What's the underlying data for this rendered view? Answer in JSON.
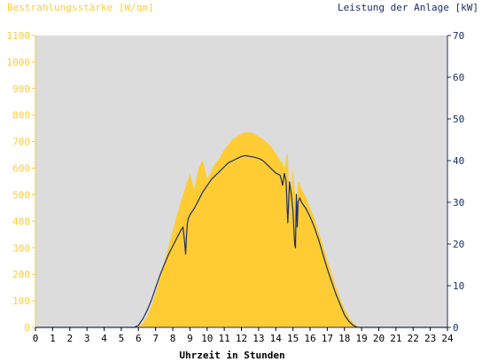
{
  "chart_data": {
    "type": "area",
    "title_left": "Bestrahlungsstärke [W/qm]",
    "title_right": "Leistung der Anlage [kW]",
    "xlabel": "Uhrzeit in Stunden",
    "x_ticks": [
      "0",
      "1",
      "2",
      "3",
      "4",
      "5",
      "6",
      "7",
      "8",
      "9",
      "10",
      "11",
      "12",
      "13",
      "14",
      "15",
      "16",
      "17",
      "18",
      "19",
      "20",
      "21",
      "22",
      "23",
      "24"
    ],
    "xlim": [
      0,
      24
    ],
    "y_left_ticks": [
      "0",
      "100",
      "200",
      "300",
      "400",
      "500",
      "600",
      "700",
      "800",
      "900",
      "1000",
      "1100"
    ],
    "y_left_lim": [
      0,
      1100
    ],
    "y_right_ticks": [
      "0",
      "10",
      "20",
      "30",
      "40",
      "50",
      "60",
      "70"
    ],
    "y_right_lim": [
      0,
      70
    ],
    "colors": {
      "irradiance": "#ffcc33",
      "power": "#1a2f66",
      "plot_bg": "#dcdcdc",
      "left_axis_text": "#ffcc33",
      "right_axis_text": "#1a2f66"
    },
    "series": [
      {
        "name": "Bestrahlungsstärke [W/qm]",
        "axis": "left",
        "x": [
          0,
          5.8,
          6,
          6.25,
          6.5,
          6.75,
          7,
          7.25,
          7.5,
          7.75,
          8,
          8.25,
          8.5,
          8.75,
          9,
          9.25,
          9.5,
          9.75,
          10,
          10.25,
          10.5,
          10.75,
          11,
          11.25,
          11.5,
          11.75,
          12,
          12.25,
          12.5,
          12.75,
          13,
          13.25,
          13.5,
          13.75,
          14,
          14.25,
          14.4,
          14.5,
          14.6,
          14.7,
          14.75,
          14.85,
          14.9,
          15,
          15.1,
          15.2,
          15.3,
          15.4,
          15.5,
          15.75,
          16,
          16.25,
          16.5,
          16.75,
          17,
          17.25,
          17.5,
          17.75,
          18,
          18.25,
          18.5,
          18.75,
          19,
          19.25,
          19.5,
          24
        ],
        "values": [
          0,
          0,
          5,
          15,
          40,
          80,
          130,
          185,
          245,
          305,
          365,
          425,
          480,
          530,
          580,
          520,
          600,
          630,
          560,
          590,
          620,
          640,
          670,
          690,
          710,
          720,
          730,
          735,
          735,
          730,
          720,
          710,
          695,
          680,
          655,
          630,
          620,
          600,
          640,
          660,
          560,
          540,
          520,
          600,
          520,
          450,
          550,
          540,
          520,
          490,
          450,
          410,
          360,
          310,
          255,
          205,
          155,
          110,
          70,
          40,
          18,
          6,
          2,
          0,
          0,
          0
        ]
      },
      {
        "name": "Leistung der Anlage [kW]",
        "axis": "right",
        "x": [
          0,
          5.75,
          6,
          6.25,
          6.5,
          6.75,
          7,
          7.25,
          7.5,
          7.75,
          8,
          8.25,
          8.5,
          8.6,
          8.7,
          8.75,
          8.8,
          8.85,
          8.9,
          9,
          9.25,
          9.5,
          9.75,
          10,
          10.25,
          10.5,
          10.75,
          11,
          11.25,
          11.5,
          11.75,
          12,
          12.25,
          12.5,
          12.75,
          13,
          13.25,
          13.5,
          13.75,
          14,
          14.25,
          14.35,
          14.4,
          14.5,
          14.6,
          14.7,
          14.75,
          14.8,
          14.9,
          15,
          15.1,
          15.15,
          15.2,
          15.25,
          15.3,
          15.4,
          15.5,
          15.75,
          16,
          16.25,
          16.5,
          16.75,
          17,
          17.25,
          17.5,
          17.75,
          18,
          18.25,
          18.5,
          18.75,
          19,
          19.25,
          24
        ],
        "values": [
          0,
          0,
          0.5,
          2,
          4,
          6.5,
          9.5,
          12.5,
          15,
          17.5,
          19.5,
          21.5,
          23.5,
          24,
          20,
          17.5,
          22,
          25,
          26,
          27,
          28.5,
          30.5,
          32.5,
          34,
          35.5,
          36.5,
          37.5,
          38.5,
          39.5,
          40,
          40.5,
          41,
          41.2,
          41,
          40.8,
          40.5,
          40,
          39,
          38,
          37,
          36.5,
          35,
          34,
          37,
          35,
          25,
          30,
          35,
          32,
          28,
          20,
          19,
          32,
          24,
          30,
          31,
          30,
          28.5,
          26.5,
          24,
          21,
          17.5,
          14,
          11,
          8,
          5.5,
          3,
          1.5,
          0.5,
          0,
          0,
          0,
          0
        ]
      }
    ]
  }
}
